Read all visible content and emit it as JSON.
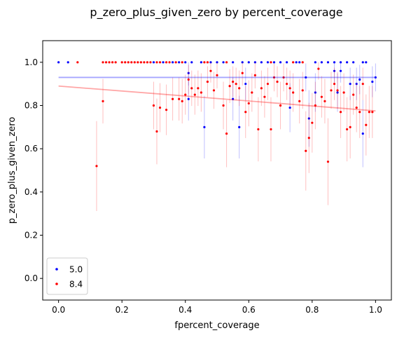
{
  "chart_data": {
    "type": "scatter",
    "title": "p_zero_plus_given_zero by percent_coverage",
    "xlabel": "fpercent_coverage",
    "ylabel": "p_zero_plus_given_zero",
    "xlim": [
      -0.05,
      1.05
    ],
    "ylim": [
      -0.1,
      1.1
    ],
    "xticks": [
      0.0,
      0.2,
      0.4,
      0.6,
      0.8,
      1.0
    ],
    "yticks": [
      0.0,
      0.2,
      0.4,
      0.6,
      0.8,
      1.0
    ],
    "xtick_labels": [
      "0.0",
      "0.2",
      "0.4",
      "0.6",
      "0.8",
      "1.0"
    ],
    "ytick_labels": [
      "0.0",
      "0.2",
      "0.4",
      "0.6",
      "0.8",
      "1.0"
    ],
    "legend_position": "lower-left",
    "series": [
      {
        "name": "5.0",
        "color": "#0000ff",
        "trend_line": {
          "x": [
            0.0,
            1.0
          ],
          "y": [
            0.93,
            0.93
          ]
        },
        "points": [
          {
            "x": 0.0,
            "y": 1.0
          },
          {
            "x": 0.03,
            "y": 1.0
          },
          {
            "x": 0.3,
            "y": 1.0
          },
          {
            "x": 0.33,
            "y": 1.0
          },
          {
            "x": 0.36,
            "y": 1.0
          },
          {
            "x": 0.38,
            "y": 1.0
          },
          {
            "x": 0.4,
            "y": 1.0
          },
          {
            "x": 0.42,
            "y": 1.0
          },
          {
            "x": 0.45,
            "y": 1.0
          },
          {
            "x": 0.48,
            "y": 1.0
          },
          {
            "x": 0.5,
            "y": 1.0
          },
          {
            "x": 0.52,
            "y": 1.0
          },
          {
            "x": 0.55,
            "y": 1.0
          },
          {
            "x": 0.58,
            "y": 1.0
          },
          {
            "x": 0.6,
            "y": 1.0
          },
          {
            "x": 0.62,
            "y": 1.0
          },
          {
            "x": 0.64,
            "y": 1.0
          },
          {
            "x": 0.66,
            "y": 1.0
          },
          {
            "x": 0.68,
            "y": 1.0
          },
          {
            "x": 0.7,
            "y": 1.0
          },
          {
            "x": 0.72,
            "y": 1.0
          },
          {
            "x": 0.75,
            "y": 1.0
          },
          {
            "x": 0.76,
            "y": 1.0
          },
          {
            "x": 0.81,
            "y": 1.0
          },
          {
            "x": 0.83,
            "y": 1.0
          },
          {
            "x": 0.85,
            "y": 1.0
          },
          {
            "x": 0.87,
            "y": 1.0
          },
          {
            "x": 0.89,
            "y": 1.0
          },
          {
            "x": 0.91,
            "y": 1.0
          },
          {
            "x": 0.93,
            "y": 1.0
          },
          {
            "x": 0.96,
            "y": 1.0
          },
          {
            "x": 0.97,
            "y": 1.0
          },
          {
            "x": 0.41,
            "y": 0.95
          },
          {
            "x": 0.41,
            "y": 0.83
          },
          {
            "x": 0.46,
            "y": 0.7
          },
          {
            "x": 0.55,
            "y": 0.83
          },
          {
            "x": 0.57,
            "y": 0.7
          },
          {
            "x": 0.59,
            "y": 0.9
          },
          {
            "x": 0.73,
            "y": 0.79
          },
          {
            "x": 0.78,
            "y": 0.93
          },
          {
            "x": 0.79,
            "y": 0.74
          },
          {
            "x": 0.81,
            "y": 0.86
          },
          {
            "x": 0.87,
            "y": 0.96
          },
          {
            "x": 0.88,
            "y": 0.86
          },
          {
            "x": 0.89,
            "y": 0.96
          },
          {
            "x": 0.92,
            "y": 0.9
          },
          {
            "x": 0.94,
            "y": 0.9
          },
          {
            "x": 0.95,
            "y": 0.92
          },
          {
            "x": 0.96,
            "y": 0.67
          },
          {
            "x": 0.99,
            "y": 0.91
          },
          {
            "x": 1.0,
            "y": 0.93
          }
        ]
      },
      {
        "name": "8.4",
        "color": "#ff0000",
        "trend_line": {
          "x": [
            0.0,
            1.0
          ],
          "y": [
            0.89,
            0.775
          ]
        },
        "points": [
          {
            "x": 0.06,
            "y": 1.0
          },
          {
            "x": 0.14,
            "y": 1.0
          },
          {
            "x": 0.15,
            "y": 1.0
          },
          {
            "x": 0.16,
            "y": 1.0
          },
          {
            "x": 0.17,
            "y": 1.0
          },
          {
            "x": 0.18,
            "y": 1.0
          },
          {
            "x": 0.2,
            "y": 1.0
          },
          {
            "x": 0.21,
            "y": 1.0
          },
          {
            "x": 0.22,
            "y": 1.0
          },
          {
            "x": 0.23,
            "y": 1.0
          },
          {
            "x": 0.24,
            "y": 1.0
          },
          {
            "x": 0.25,
            "y": 1.0
          },
          {
            "x": 0.26,
            "y": 1.0
          },
          {
            "x": 0.27,
            "y": 1.0
          },
          {
            "x": 0.28,
            "y": 1.0
          },
          {
            "x": 0.29,
            "y": 1.0
          },
          {
            "x": 0.31,
            "y": 1.0
          },
          {
            "x": 0.32,
            "y": 1.0
          },
          {
            "x": 0.34,
            "y": 1.0
          },
          {
            "x": 0.35,
            "y": 1.0
          },
          {
            "x": 0.37,
            "y": 1.0
          },
          {
            "x": 0.39,
            "y": 1.0
          },
          {
            "x": 0.46,
            "y": 1.0
          },
          {
            "x": 0.47,
            "y": 1.0
          },
          {
            "x": 0.53,
            "y": 1.0
          },
          {
            "x": 0.67,
            "y": 1.0
          },
          {
            "x": 0.74,
            "y": 1.0
          },
          {
            "x": 0.77,
            "y": 1.0
          },
          {
            "x": 0.12,
            "y": 0.52
          },
          {
            "x": 0.14,
            "y": 0.82
          },
          {
            "x": 0.3,
            "y": 0.8
          },
          {
            "x": 0.31,
            "y": 0.68
          },
          {
            "x": 0.32,
            "y": 0.79
          },
          {
            "x": 0.34,
            "y": 0.78
          },
          {
            "x": 0.36,
            "y": 0.83
          },
          {
            "x": 0.38,
            "y": 0.83
          },
          {
            "x": 0.39,
            "y": 0.82
          },
          {
            "x": 0.4,
            "y": 0.85
          },
          {
            "x": 0.41,
            "y": 0.92
          },
          {
            "x": 0.42,
            "y": 0.88
          },
          {
            "x": 0.43,
            "y": 0.85
          },
          {
            "x": 0.44,
            "y": 0.88
          },
          {
            "x": 0.45,
            "y": 0.86
          },
          {
            "x": 0.47,
            "y": 0.91
          },
          {
            "x": 0.48,
            "y": 0.96
          },
          {
            "x": 0.49,
            "y": 0.87
          },
          {
            "x": 0.5,
            "y": 0.94
          },
          {
            "x": 0.52,
            "y": 0.8
          },
          {
            "x": 0.53,
            "y": 0.67
          },
          {
            "x": 0.54,
            "y": 0.89
          },
          {
            "x": 0.55,
            "y": 0.91
          },
          {
            "x": 0.56,
            "y": 0.9
          },
          {
            "x": 0.57,
            "y": 0.88
          },
          {
            "x": 0.58,
            "y": 0.95
          },
          {
            "x": 0.59,
            "y": 0.77
          },
          {
            "x": 0.6,
            "y": 0.81
          },
          {
            "x": 0.61,
            "y": 0.86
          },
          {
            "x": 0.62,
            "y": 0.94
          },
          {
            "x": 0.63,
            "y": 0.69
          },
          {
            "x": 0.64,
            "y": 0.88
          },
          {
            "x": 0.65,
            "y": 0.84
          },
          {
            "x": 0.66,
            "y": 0.9
          },
          {
            "x": 0.67,
            "y": 0.69
          },
          {
            "x": 0.68,
            "y": 0.93
          },
          {
            "x": 0.69,
            "y": 0.91
          },
          {
            "x": 0.7,
            "y": 0.8
          },
          {
            "x": 0.71,
            "y": 0.93
          },
          {
            "x": 0.72,
            "y": 0.9
          },
          {
            "x": 0.73,
            "y": 0.88
          },
          {
            "x": 0.74,
            "y": 0.86
          },
          {
            "x": 0.76,
            "y": 0.82
          },
          {
            "x": 0.77,
            "y": 0.87
          },
          {
            "x": 0.78,
            "y": 0.59
          },
          {
            "x": 0.79,
            "y": 0.65
          },
          {
            "x": 0.8,
            "y": 0.72
          },
          {
            "x": 0.81,
            "y": 0.8
          },
          {
            "x": 0.82,
            "y": 0.97
          },
          {
            "x": 0.83,
            "y": 0.84
          },
          {
            "x": 0.84,
            "y": 0.82
          },
          {
            "x": 0.85,
            "y": 0.54
          },
          {
            "x": 0.86,
            "y": 0.87
          },
          {
            "x": 0.87,
            "y": 0.9
          },
          {
            "x": 0.88,
            "y": 0.87
          },
          {
            "x": 0.89,
            "y": 0.77
          },
          {
            "x": 0.9,
            "y": 0.86
          },
          {
            "x": 0.91,
            "y": 0.69
          },
          {
            "x": 0.92,
            "y": 0.7
          },
          {
            "x": 0.93,
            "y": 0.85
          },
          {
            "x": 0.94,
            "y": 0.79
          },
          {
            "x": 0.95,
            "y": 0.77
          },
          {
            "x": 0.96,
            "y": 0.9
          },
          {
            "x": 0.97,
            "y": 0.71
          },
          {
            "x": 0.98,
            "y": 0.77
          },
          {
            "x": 0.99,
            "y": 0.77
          }
        ]
      }
    ]
  }
}
